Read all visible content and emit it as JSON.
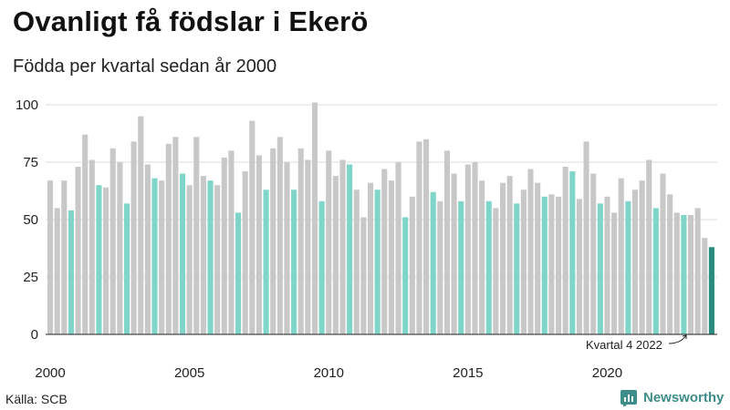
{
  "title": "Ovanligt få födslar i Ekerö",
  "subtitle": "Födda per kvartal sedan år 2000",
  "source": "Källa: SCB",
  "brand": {
    "name": "Newsworthy",
    "icon": "newsworthy-logo-icon",
    "color": "#3d8d8a"
  },
  "colors": {
    "bar": "#c8c8c8",
    "q4_bar": "#7fd6c8",
    "highlight_bar": "#2a8c80",
    "grid": "#dddddd",
    "axis": "#222222"
  },
  "chart_data": {
    "type": "bar",
    "title": "Ovanligt få födslar i Ekerö",
    "subtitle": "Födda per kvartal sedan år 2000",
    "xlabel": "",
    "ylabel": "",
    "ylim": [
      0,
      100
    ],
    "yticks": [
      0,
      25,
      50,
      75,
      100
    ],
    "xticks": [
      "2000",
      "2005",
      "2010",
      "2015",
      "2020"
    ],
    "grid": true,
    "start_year": 2000,
    "values": [
      67,
      55,
      67,
      54,
      73,
      87,
      76,
      65,
      64,
      81,
      75,
      57,
      84,
      95,
      74,
      68,
      67,
      83,
      86,
      70,
      65,
      86,
      69,
      67,
      65,
      77,
      80,
      53,
      71,
      93,
      78,
      63,
      81,
      86,
      75,
      63,
      81,
      76,
      101,
      58,
      80,
      69,
      76,
      74,
      63,
      51,
      66,
      63,
      72,
      67,
      75,
      51,
      60,
      84,
      85,
      62,
      58,
      80,
      70,
      58,
      74,
      75,
      67,
      58,
      55,
      66,
      69,
      57,
      63,
      72,
      66,
      60,
      61,
      60,
      73,
      71,
      59,
      84,
      70,
      57,
      60,
      53,
      68,
      58,
      63,
      67,
      76,
      55,
      70,
      61,
      53,
      52,
      52,
      55,
      42,
      38
    ],
    "annotation": "Kvartal 4 2022"
  }
}
